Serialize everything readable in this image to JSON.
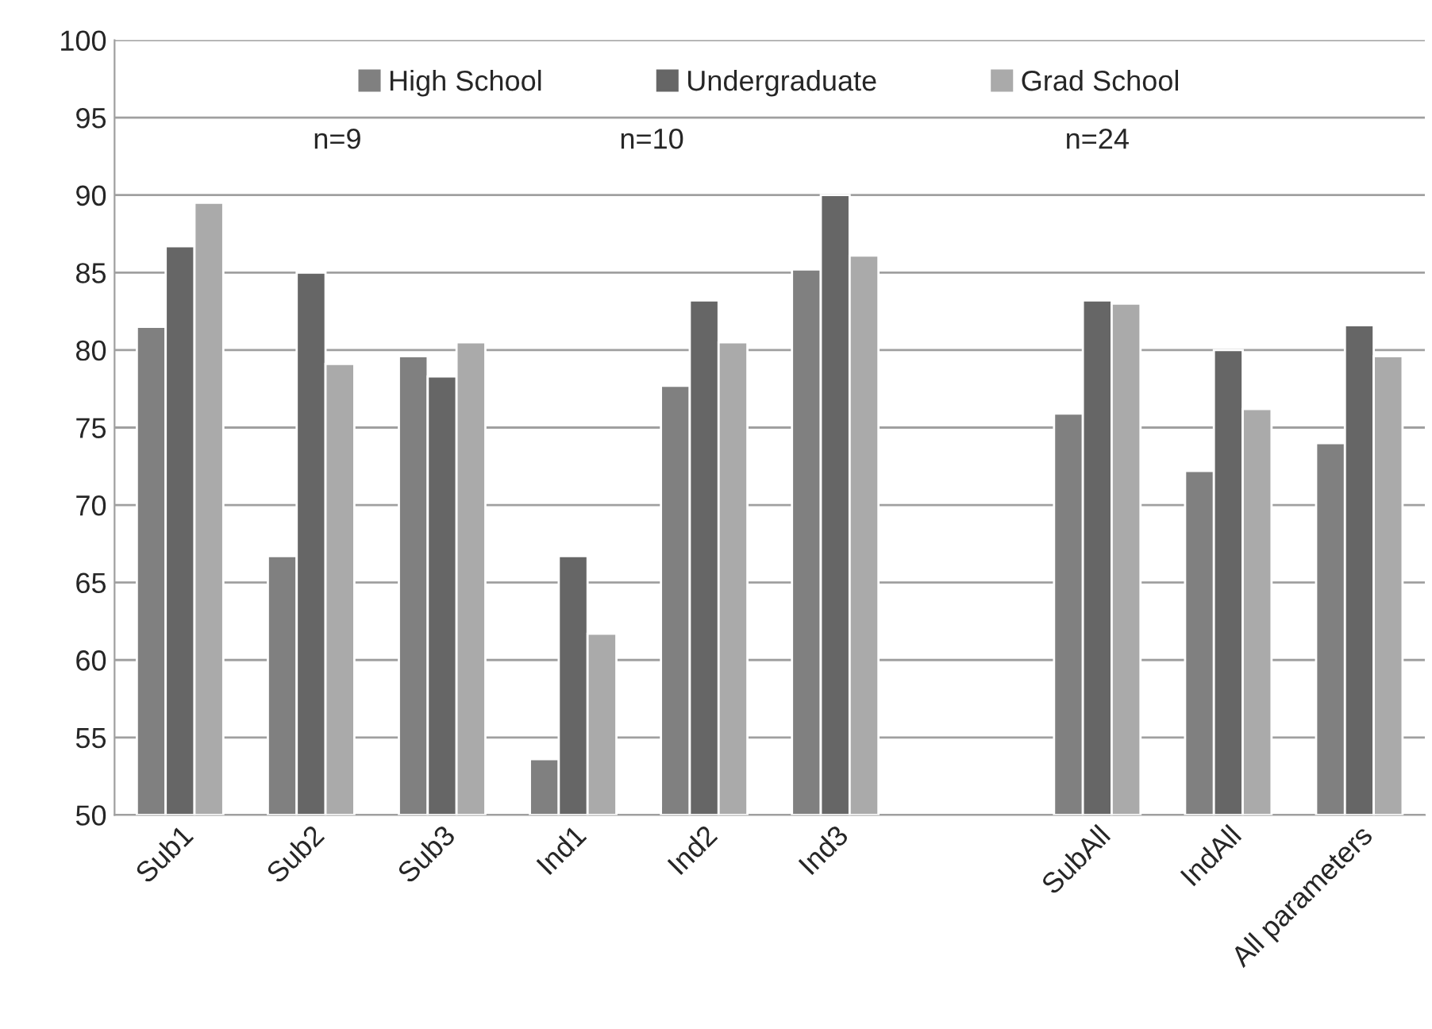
{
  "chart_data": {
    "type": "bar",
    "categories": [
      "Sub1",
      "Sub2",
      "Sub3",
      "Ind1",
      "Ind2",
      "Ind3",
      null,
      "SubAll",
      "IndAll",
      "All parameters"
    ],
    "series": [
      {
        "name": "High School",
        "color": "#808080",
        "values": [
          81.5,
          66.7,
          79.6,
          53.6,
          77.7,
          85.2,
          null,
          75.9,
          72.2,
          74.0
        ]
      },
      {
        "name": "Undergraduate",
        "color": "#666666",
        "values": [
          86.7,
          85.0,
          78.3,
          66.7,
          83.2,
          90.0,
          null,
          83.2,
          80.0,
          81.6
        ]
      },
      {
        "name": "Grad School",
        "color": "#aaaaaa",
        "values": [
          89.5,
          79.1,
          80.5,
          61.7,
          80.5,
          86.1,
          null,
          83.0,
          76.2,
          79.6
        ]
      }
    ],
    "annotations": [
      "n=9",
      "n=10",
      "n=24"
    ],
    "ylim": [
      50,
      100
    ],
    "yticks": [
      50,
      55,
      60,
      65,
      70,
      75,
      80,
      85,
      90,
      95,
      100
    ],
    "grid": "y",
    "legend": "top"
  }
}
